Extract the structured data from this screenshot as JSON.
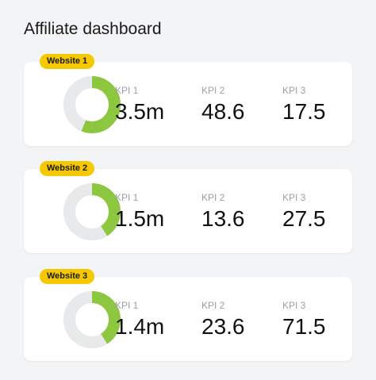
{
  "header": {
    "title": "Affiliate dashboard"
  },
  "colors": {
    "accent_green": "#8dc63f",
    "track_gray": "#e8e9ea",
    "badge_yellow": "#f5c800"
  },
  "websites": [
    {
      "badge": "Website 1",
      "donut_fraction": 0.56,
      "kpis": [
        {
          "label": "KPI 1",
          "value": "3.5m"
        },
        {
          "label": "KPI 2",
          "value": "48.6"
        },
        {
          "label": "KPI 3",
          "value": "17.5"
        }
      ]
    },
    {
      "badge": "Website 2",
      "donut_fraction": 0.41,
      "kpis": [
        {
          "label": "KPI 1",
          "value": "1.5m"
        },
        {
          "label": "KPI 2",
          "value": "13.6"
        },
        {
          "label": "KPI 3",
          "value": "27.5"
        }
      ]
    },
    {
      "badge": "Website 3",
      "donut_fraction": 0.41,
      "kpis": [
        {
          "label": "KPI 1",
          "value": "1.4m"
        },
        {
          "label": "KPI 2",
          "value": "23.6"
        },
        {
          "label": "KPI 3",
          "value": "71.5"
        }
      ]
    }
  ]
}
